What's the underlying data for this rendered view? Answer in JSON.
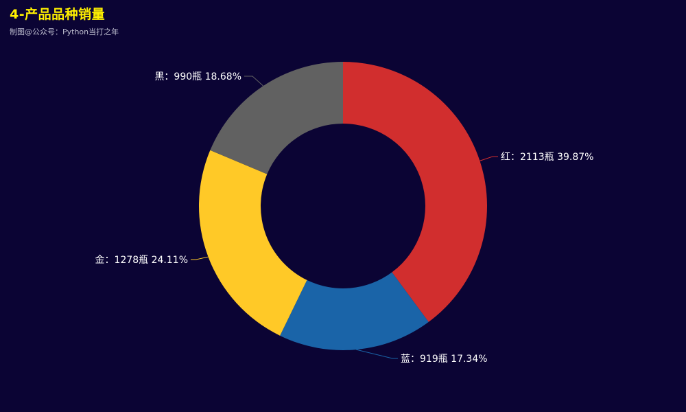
{
  "title": "4-产品品种销量",
  "subtitle": "制图@公众号：Python当打之年",
  "chart_data": {
    "type": "pie",
    "variant": "donut",
    "title": "4-产品品种销量",
    "subtitle": "制图@公众号：Python当打之年",
    "unit": "瓶",
    "slices": [
      {
        "name": "红",
        "value": 2113,
        "percent": "39.87%",
        "color": "#d12e2e",
        "label": "红：2113瓶 39.87%"
      },
      {
        "name": "蓝",
        "value": 919,
        "percent": "17.34%",
        "color": "#1a64a8",
        "label": "蓝：919瓶 17.34%"
      },
      {
        "name": "金",
        "value": 1278,
        "percent": "24.11%",
        "color": "#ffc927",
        "label": "金：1278瓶 24.11%"
      },
      {
        "name": "黑",
        "value": 990,
        "percent": "18.68%",
        "color": "#616161",
        "label": "黑：990瓶 18.68%"
      }
    ]
  }
}
